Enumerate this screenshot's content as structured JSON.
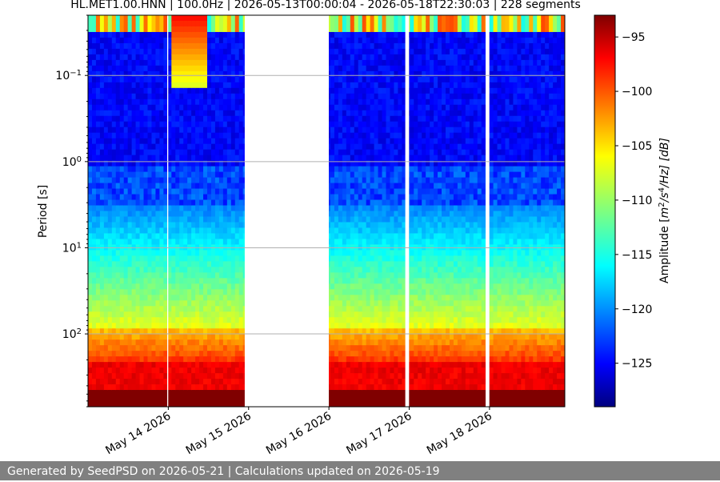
{
  "chart_data": {
    "type": "heatmap",
    "title": "HL.MET1.00.HNN | 100.0Hz | 2026-05-13T00:00:04 - 2026-05-18T22:30:03 | 228 segments",
    "ylabel": "Period [s]",
    "xlabel": "",
    "y_scale": "log",
    "y_inverted": true,
    "ylim": [
      0.02,
      700
    ],
    "x_range": [
      "2026-05-13T00:00:04",
      "2026-05-18T22:30:03"
    ],
    "x_ticks": [
      "May 14 2026",
      "May 15 2026",
      "May 16 2026",
      "May 17 2026",
      "May 18 2026"
    ],
    "x_tick_dates": [
      "2026-05-14",
      "2026-05-15",
      "2026-05-16",
      "2026-05-17",
      "2026-05-18"
    ],
    "y_ticks": [
      {
        "base": "10",
        "exp": "−1",
        "value": 0.1
      },
      {
        "base": "10",
        "exp": "0",
        "value": 1
      },
      {
        "base": "10",
        "exp": "1",
        "value": 10
      },
      {
        "base": "10",
        "exp": "2",
        "value": 100
      }
    ],
    "data_gaps": [
      {
        "start": "2026-05-13T23:40:00",
        "end": "2026-05-13T23:58:00"
      },
      {
        "start": "2026-05-14T22:50:00",
        "end": "2026-05-15T23:58:00"
      },
      {
        "start": "2026-05-16T22:50:00",
        "end": "2026-05-16T23:58:00"
      },
      {
        "start": "2026-05-17T22:50:00",
        "end": "2026-05-17T23:58:00"
      }
    ],
    "grid": true,
    "colorbar": {
      "label_prefix": "Amplitude [",
      "label_unit": "m",
      "label_sup1": "2",
      "label_mid": "/s",
      "label_sup2": "4",
      "label_end": "/Hz] [dB]",
      "colormap": "jet",
      "range": [
        -129,
        -93
      ],
      "ticks": [
        "−95",
        "−100",
        "−105",
        "−110",
        "−115",
        "−120",
        "−125"
      ],
      "tick_values": [
        -95,
        -100,
        -105,
        -110,
        -115,
        -120,
        -125
      ]
    }
  },
  "footer": {
    "text": "Generated by SeedPSD on 2026-05-21 | Calculations updated on 2026-05-19"
  }
}
